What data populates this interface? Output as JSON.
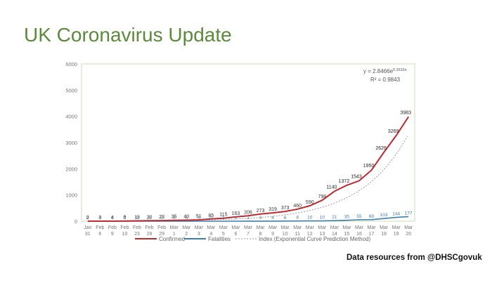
{
  "page": {
    "title": "UK Coronavirus Update",
    "credit": "Data resources from @DHSCgovuk"
  },
  "colors": {
    "title": "#5b8a3a",
    "confirmed": "#c0292f",
    "fatalities": "#3f7fb0",
    "prediction": "#9a9a9a",
    "plot_border": "#c8dcb0"
  },
  "chart_data": {
    "type": "line",
    "title": "",
    "xlabel": "",
    "ylabel": "",
    "ylim": [
      0,
      6000
    ],
    "y_ticks": [
      0,
      1000,
      2000,
      3000,
      4000,
      5000,
      6000
    ],
    "grid": false,
    "legend_position": "bottom",
    "categories": [
      [
        "Jan",
        "31"
      ],
      [
        "Feb",
        "6"
      ],
      [
        "Feb",
        "9"
      ],
      [
        "Feb",
        "10"
      ],
      [
        "Feb",
        "23"
      ],
      [
        "Feb",
        "28"
      ],
      [
        "Feb",
        "29"
      ],
      [
        "Mar",
        "1"
      ],
      [
        "Mar",
        "2"
      ],
      [
        "Mar",
        "3"
      ],
      [
        "Mar",
        "4"
      ],
      [
        "Mar",
        "5"
      ],
      [
        "Mar",
        "6"
      ],
      [
        "Mar",
        "7"
      ],
      [
        "Mar",
        "8"
      ],
      [
        "Mar",
        "9"
      ],
      [
        "Mar",
        "10"
      ],
      [
        "Mar",
        "11"
      ],
      [
        "Mar",
        "12"
      ],
      [
        "Mar",
        "13"
      ],
      [
        "Mar",
        "14"
      ],
      [
        "Mar",
        "15"
      ],
      [
        "Mar",
        "16"
      ],
      [
        "Mar",
        "17"
      ],
      [
        "Mar",
        "18"
      ],
      [
        "Mar",
        "19"
      ],
      [
        "Mar",
        "20"
      ]
    ],
    "series": [
      {
        "name": "Confirmed",
        "values": [
          2,
          3,
          4,
          8,
          13,
          20,
          23,
          35,
          40,
          51,
          85,
          115,
          163,
          206,
          273,
          319,
          373,
          460,
          590,
          798,
          1140,
          1372,
          1543,
          1950,
          2626,
          3269,
          3983
        ],
        "labels": [
          "2",
          "3",
          "4",
          "8",
          "13",
          "20",
          "23",
          "35",
          "40",
          "51",
          "85",
          "115",
          "163",
          "206",
          "273",
          "319",
          "373",
          "460",
          "590",
          "798",
          "1140",
          "1372",
          "1543",
          "1950",
          "2626",
          "3269",
          "3983"
        ]
      },
      {
        "name": "Fatalities",
        "values": [
          0,
          0,
          0,
          0,
          0,
          0,
          0,
          0,
          0,
          0,
          0,
          1,
          1,
          2,
          3,
          4,
          6,
          8,
          10,
          10,
          21,
          35,
          55,
          60,
          103,
          144,
          177
        ],
        "labels": [
          "0",
          "0",
          "0",
          "0",
          "0",
          "0",
          "0",
          "0",
          "0",
          "0",
          "0",
          "1",
          "1",
          "2",
          "3",
          "4",
          "6",
          "8",
          "10",
          "10",
          "21",
          "35",
          "55",
          "60",
          "103",
          "144",
          "177"
        ]
      },
      {
        "name": "Index (Exponential Curve Prediction Method)",
        "equation_text": "y = 2.8466e",
        "equation_exponent": "0.2616x",
        "r2_text": "R² = 0.9843",
        "coef": 2.8466,
        "rate": 0.2616
      }
    ]
  }
}
